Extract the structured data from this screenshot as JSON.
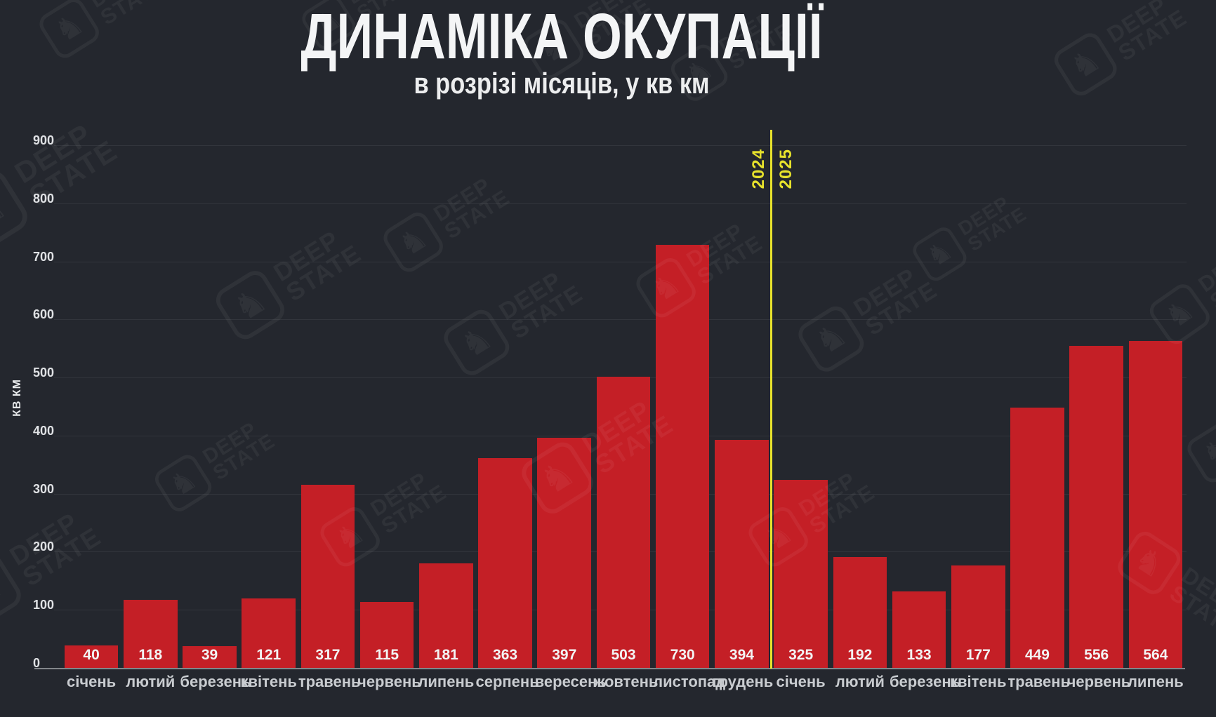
{
  "header": {
    "title": "ДИНАМІКА ОКУПАЦІЇ",
    "subtitle": "в розрізі місяців, у кв км"
  },
  "watermark": {
    "brand_line1": "DEEP",
    "brand_line2": "STATE",
    "knight_icon": "♞"
  },
  "divider": {
    "left_label": "2024",
    "right_label": "2025",
    "color": "#e7e22c"
  },
  "colors": {
    "background": "#24272e",
    "bar": "#c41f26",
    "gridline": "#32353c",
    "axis_line": "#82868a",
    "tick_text": "#dfe1e4",
    "month_text": "#c9ccd0",
    "value_text": "#f3f4f4",
    "title_text": "#f4f5f6",
    "divider_yellow": "#e7e22c"
  },
  "chart_data": {
    "type": "bar",
    "title": "ДИНАМІКА ОКУПАЦІЇ",
    "subtitle": "в розрізі місяців, у кв км",
    "ylabel": "КВ КМ",
    "xlabel": "",
    "ylim": [
      0,
      900
    ],
    "yticks": [
      0,
      100,
      200,
      300,
      400,
      500,
      600,
      700,
      800,
      900
    ],
    "grid": true,
    "legend": false,
    "categories": [
      "січень",
      "лютий",
      "березень",
      "квітень",
      "травень",
      "червень",
      "липень",
      "серпень",
      "вересень",
      "жовтень",
      "листопад",
      "грудень",
      "січень",
      "лютий",
      "березень",
      "квітень",
      "травень",
      "червень",
      "липень"
    ],
    "values": [
      40,
      118,
      39,
      121,
      317,
      115,
      181,
      363,
      397,
      503,
      730,
      394,
      325,
      192,
      133,
      177,
      449,
      556,
      564
    ],
    "year_groups": [
      {
        "year": "2024",
        "start_index": 0,
        "end_index": 11
      },
      {
        "year": "2025",
        "start_index": 12,
        "end_index": 18
      }
    ],
    "divider_after_index": 11
  }
}
